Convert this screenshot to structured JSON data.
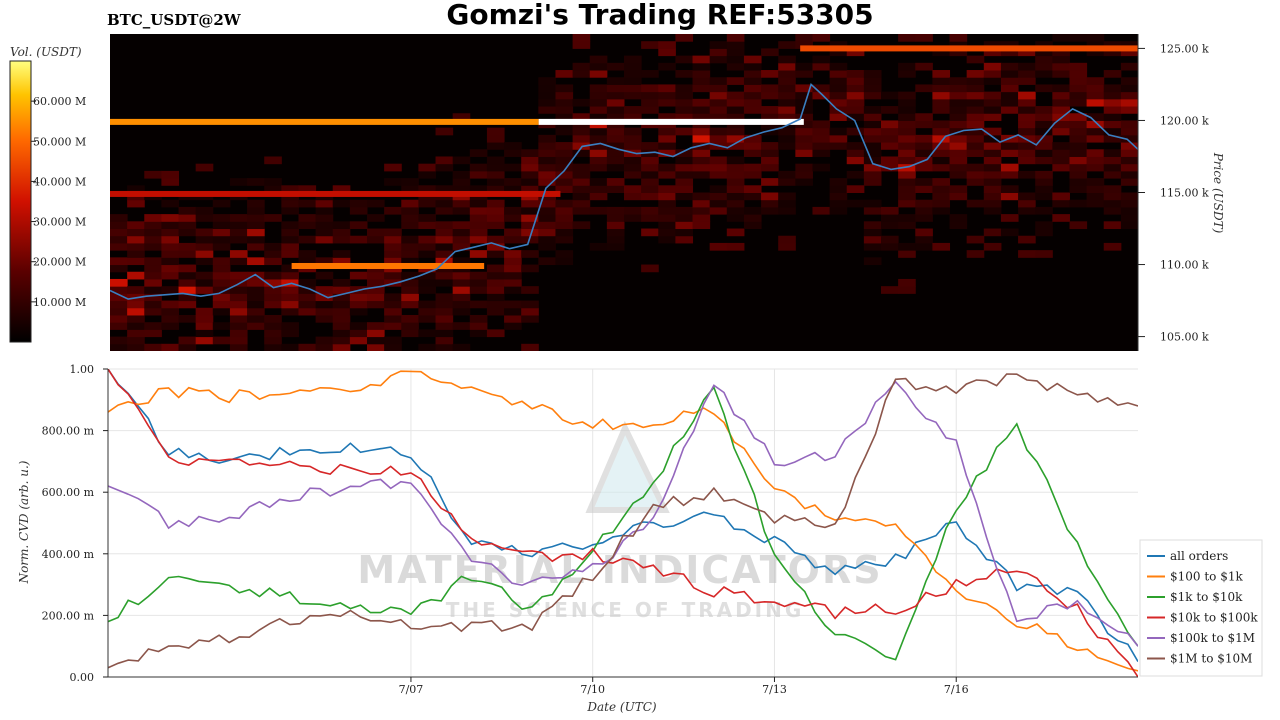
{
  "header": {
    "title": "Gomzi's Trading REF:53305",
    "symbol": "BTC_USDT@2W"
  },
  "watermark": {
    "line1": "MATERIAL INDICATORS",
    "line2": "THE SCIENCE OF TRADING"
  },
  "colors": {
    "price_line": "#3a7fc1",
    "heatmap_bg": "#050000",
    "grid": "#e6e6e6"
  },
  "chart_data": [
    {
      "type": "heatmap",
      "title": "",
      "ylabel": "Price (USDT)",
      "ylim": [
        104000,
        126000
      ],
      "yticks": [
        {
          "value": 105000,
          "label": "105.00 k"
        },
        {
          "value": 110000,
          "label": "110.00 k"
        },
        {
          "value": 115000,
          "label": "115.00 k"
        },
        {
          "value": 120000,
          "label": "120.00 k"
        },
        {
          "value": 125000,
          "label": "125.00 k"
        }
      ],
      "colorbar": {
        "label": "Vol. (USDT)",
        "range": [
          0,
          70000000
        ],
        "ticks": [
          {
            "value": 10000000,
            "label": "10.000 M"
          },
          {
            "value": 20000000,
            "label": "20.000 M"
          },
          {
            "value": 30000000,
            "label": "30.000 M"
          },
          {
            "value": 40000000,
            "label": "40.000 M"
          },
          {
            "value": 50000000,
            "label": "50.000 M"
          },
          {
            "value": 60000000,
            "label": "60.000 M"
          }
        ]
      },
      "strong_levels": [
        {
          "start_day": 0,
          "end_day": 11.8,
          "price": 119900,
          "volume": 55000000
        },
        {
          "start_day": 11.8,
          "end_day": 19.1,
          "price": 119900,
          "volume": 70000000
        },
        {
          "start_day": 5.0,
          "end_day": 10.3,
          "price": 109900,
          "volume": 52000000
        },
        {
          "start_day": 19.0,
          "end_day": 28.3,
          "price": 125000,
          "volume": 45000000
        },
        {
          "start_day": 0,
          "end_day": 12.4,
          "price": 114900,
          "volume": 33000000
        }
      ],
      "price_series": {
        "x": [
          0,
          0.5,
          1,
          1.5,
          2,
          2.5,
          3,
          3.5,
          4,
          4.5,
          5,
          5.5,
          6,
          6.5,
          7,
          7.5,
          8,
          8.5,
          9,
          9.5,
          10,
          10.5,
          11,
          11.5,
          12,
          12.5,
          13,
          13.5,
          14,
          14.5,
          15,
          15.5,
          16,
          16.5,
          17,
          17.5,
          18,
          18.5,
          19,
          19.3,
          19.6,
          20,
          20.5,
          21,
          21.5,
          22,
          22.5,
          23,
          23.5,
          24,
          24.5,
          25,
          25.5,
          26,
          26.5,
          27,
          27.5,
          28,
          28.3
        ],
        "values": [
          108200,
          107600,
          107800,
          107900,
          108000,
          107800,
          108000,
          108600,
          109300,
          108400,
          108700,
          108300,
          107700,
          108000,
          108300,
          108500,
          108800,
          109200,
          109700,
          110900,
          111200,
          111500,
          111100,
          111400,
          115300,
          116500,
          118200,
          118400,
          118000,
          117700,
          117800,
          117500,
          118100,
          118400,
          118100,
          118800,
          119200,
          119500,
          120100,
          122500,
          121800,
          120800,
          120000,
          117000,
          116600,
          116800,
          117300,
          118900,
          119300,
          119400,
          118500,
          119000,
          118300,
          119800,
          120800,
          120200,
          119000,
          118700,
          118000
        ]
      }
    },
    {
      "type": "line",
      "title": "",
      "xlabel": "Date (UTC)",
      "ylabel": "Norm. CVD (arb. u.)",
      "ylim": [
        0,
        1
      ],
      "xlim": [
        "7/02",
        "7/16"
      ],
      "xticks": [
        "7/07",
        "7/10",
        "7/13",
        "7/16"
      ],
      "yticks": [
        {
          "value": 0,
          "label": "0.00"
        },
        {
          "value": 0.2,
          "label": "200.00 m"
        },
        {
          "value": 0.4,
          "label": "400.00 m"
        },
        {
          "value": 0.6,
          "label": "600.00 m"
        },
        {
          "value": 0.8,
          "label": "800.00 m"
        },
        {
          "value": 1.0,
          "label": "1.00"
        }
      ],
      "grid": true,
      "legend_position": "right-bottom",
      "x": [
        "7/02",
        "7/03",
        "7/04",
        "7/05",
        "7/06",
        "7/07",
        "7/08",
        "7/09",
        "7/10",
        "7/11",
        "7/12",
        "7/13",
        "7/14",
        "7/15",
        "7/16",
        "7/17",
        "7/18",
        "7/19"
      ],
      "series": [
        {
          "name": "all orders",
          "color": "#1f77b4",
          "values": [
            1.0,
            0.73,
            0.71,
            0.73,
            0.74,
            0.73,
            0.43,
            0.4,
            0.43,
            0.5,
            0.52,
            0.44,
            0.34,
            0.38,
            0.5,
            0.3,
            0.27,
            0.05
          ]
        },
        {
          "name": "$100 to $1k",
          "color": "#ff7f0e",
          "values": [
            0.86,
            0.93,
            0.91,
            0.93,
            0.94,
            0.98,
            0.93,
            0.88,
            0.82,
            0.83,
            0.86,
            0.62,
            0.5,
            0.49,
            0.28,
            0.18,
            0.1,
            0.02
          ]
        },
        {
          "name": "$1k to $10k",
          "color": "#2ca02c",
          "values": [
            0.18,
            0.33,
            0.3,
            0.26,
            0.24,
            0.2,
            0.33,
            0.22,
            0.41,
            0.63,
            0.95,
            0.39,
            0.14,
            0.05,
            0.55,
            0.82,
            0.42,
            0.1
          ]
        },
        {
          "name": "$10k to $100k",
          "color": "#d62728",
          "values": [
            1.0,
            0.71,
            0.7,
            0.68,
            0.67,
            0.67,
            0.43,
            0.39,
            0.4,
            0.36,
            0.28,
            0.25,
            0.21,
            0.22,
            0.3,
            0.35,
            0.22,
            0.0
          ]
        },
        {
          "name": "$100k to $1M",
          "color": "#9467bd",
          "values": [
            0.62,
            0.5,
            0.52,
            0.58,
            0.62,
            0.63,
            0.37,
            0.3,
            0.35,
            0.52,
            0.95,
            0.7,
            0.72,
            0.95,
            0.75,
            0.18,
            0.25,
            0.1
          ]
        },
        {
          "name": "$1M to $10M",
          "color": "#8c564b",
          "values": [
            0.03,
            0.1,
            0.12,
            0.18,
            0.2,
            0.16,
            0.16,
            0.17,
            0.33,
            0.55,
            0.6,
            0.52,
            0.48,
            0.96,
            0.94,
            0.97,
            0.92,
            0.88
          ]
        }
      ]
    }
  ]
}
